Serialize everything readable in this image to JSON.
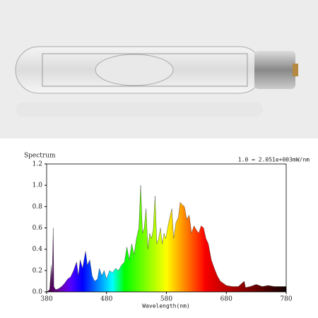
{
  "chart_data": {
    "type": "area",
    "title": "Spectrum",
    "annotation": "1.0 = 2.051e+003mW/nm",
    "x_label": "Wavelength(nm)",
    "xlim": [
      380,
      780
    ],
    "xticks": [
      380,
      480,
      580,
      680,
      780
    ],
    "ylim": [
      0,
      1.2
    ],
    "yticks": [
      {
        "value": 0,
        "label": "0.0"
      },
      0.2,
      0.4,
      0.6,
      0.8,
      {
        "value": 1,
        "label": "1.0"
      },
      1.2
    ],
    "x": [
      380,
      385,
      388,
      389,
      391,
      392,
      395,
      400,
      405,
      410,
      415,
      420,
      425,
      430,
      433,
      436,
      440,
      445,
      448,
      452,
      456,
      460,
      465,
      468,
      472,
      476,
      480,
      485,
      490,
      495,
      500,
      505,
      510,
      514,
      518,
      522,
      526,
      530,
      534,
      537,
      540,
      543,
      546,
      549,
      552,
      555,
      558,
      561,
      564,
      567,
      570,
      573,
      576,
      579,
      582,
      585,
      589,
      592,
      596,
      600,
      603,
      606,
      610,
      614,
      618,
      622,
      626,
      630,
      634,
      638,
      642,
      646,
      650,
      655,
      660,
      665,
      670,
      675,
      680,
      690,
      700,
      710,
      712,
      720,
      730,
      740,
      750,
      760,
      770,
      780
    ],
    "values": [
      0,
      0.02,
      0.25,
      0.05,
      0.6,
      0.05,
      0.02,
      0.03,
      0.05,
      0.08,
      0.12,
      0.14,
      0.2,
      0.28,
      0.15,
      0.3,
      0.22,
      0.38,
      0.25,
      0.3,
      0.15,
      0.1,
      0.12,
      0.22,
      0.15,
      0.2,
      0.12,
      0.2,
      0.18,
      0.22,
      0.2,
      0.25,
      0.28,
      0.42,
      0.3,
      0.45,
      0.35,
      0.5,
      0.6,
      1.0,
      0.55,
      0.6,
      0.78,
      0.4,
      0.55,
      0.5,
      0.58,
      0.9,
      0.45,
      0.5,
      0.6,
      0.45,
      0.55,
      0.5,
      0.6,
      0.68,
      0.78,
      0.5,
      0.65,
      0.7,
      0.84,
      0.82,
      0.8,
      0.68,
      0.72,
      0.55,
      0.62,
      0.58,
      0.55,
      0.62,
      0.6,
      0.5,
      0.45,
      0.3,
      0.22,
      0.15,
      0.1,
      0.08,
      0.06,
      0.05,
      0.05,
      0.1,
      0.04,
      0.05,
      0.07,
      0.05,
      0.06,
      0.05,
      0.05,
      0.05
    ]
  }
}
